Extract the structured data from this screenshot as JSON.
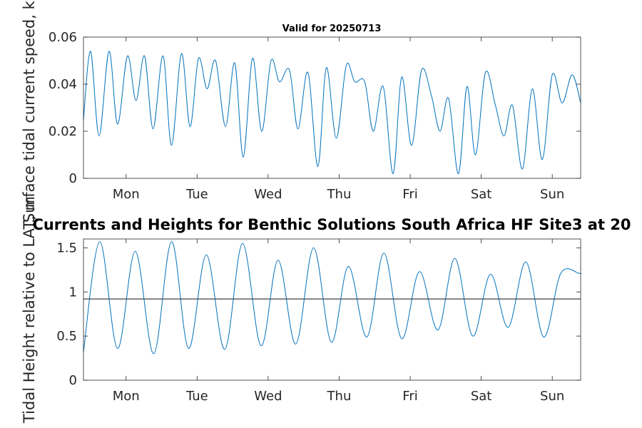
{
  "figure": {
    "main_title": "Currents and Heights for Benthic Solutions South Africa HF Site3 at 20"
  },
  "colors": {
    "line": "#0072BD",
    "axes": "#262626",
    "reference_line": "#404040"
  },
  "chart_data": [
    {
      "type": "line",
      "title": "Valid for 20250713",
      "ylabel": "Surface tidal current speed, kn",
      "xlabel": "",
      "categories": [
        "Mon",
        "Tue",
        "Wed",
        "Thu",
        "Fri",
        "Sat",
        "Sun"
      ],
      "x_range_days": [
        -0.6,
        6.4
      ],
      "ylim": [
        0,
        0.06
      ],
      "yticks": [
        0,
        0.02,
        0.04,
        0.06
      ],
      "ytick_labels": [
        "0",
        "0.02",
        "0.04",
        "0.06"
      ],
      "grid": false,
      "series": [
        {
          "x": [
            -0.6,
            -0.5,
            -0.38,
            -0.24,
            -0.12,
            0.02,
            0.14,
            0.26,
            0.38,
            0.52,
            0.64,
            0.78,
            0.9,
            1.02,
            1.14,
            1.26,
            1.4,
            1.53,
            1.65,
            1.78,
            1.91,
            2.04,
            2.16,
            2.3,
            2.42,
            2.56,
            2.7,
            2.82,
            2.96,
            3.1,
            3.22,
            3.36,
            3.48,
            3.62,
            3.76,
            3.88,
            4.02,
            4.16,
            4.3,
            4.42,
            4.54,
            4.68,
            4.8,
            4.92,
            5.06,
            5.2,
            5.32,
            5.44,
            5.58,
            5.72,
            5.86,
            6.0,
            6.14,
            6.28,
            6.4
          ],
          "y": [
            0.025,
            0.054,
            0.018,
            0.054,
            0.023,
            0.052,
            0.033,
            0.052,
            0.021,
            0.052,
            0.014,
            0.053,
            0.022,
            0.051,
            0.038,
            0.05,
            0.022,
            0.049,
            0.009,
            0.051,
            0.02,
            0.05,
            0.041,
            0.046,
            0.021,
            0.045,
            0.005,
            0.047,
            0.017,
            0.048,
            0.041,
            0.041,
            0.02,
            0.039,
            0.002,
            0.043,
            0.014,
            0.046,
            0.035,
            0.02,
            0.034,
            0.002,
            0.039,
            0.01,
            0.045,
            0.031,
            0.018,
            0.031,
            0.004,
            0.038,
            0.008,
            0.044,
            0.032,
            0.044,
            0.032
          ]
        }
      ]
    },
    {
      "type": "line",
      "title": "",
      "ylabel": "Tidal Height relative to LAT, m",
      "xlabel": "",
      "categories": [
        "Mon",
        "Tue",
        "Wed",
        "Thu",
        "Fri",
        "Sat",
        "Sun"
      ],
      "x_range_days": [
        -0.6,
        6.4
      ],
      "ylim": [
        0,
        1.6
      ],
      "yticks": [
        0,
        0.5,
        1,
        1.5
      ],
      "ytick_labels": [
        "0",
        "0.5",
        "1",
        "1.5"
      ],
      "grid": false,
      "reference_level": 0.92,
      "series": [
        {
          "x": [
            -0.6,
            -0.37,
            -0.12,
            0.13,
            0.39,
            0.64,
            0.88,
            1.13,
            1.39,
            1.64,
            1.9,
            2.14,
            2.39,
            2.64,
            2.89,
            3.13,
            3.39,
            3.63,
            3.88,
            4.13,
            4.39,
            4.63,
            4.88,
            5.13,
            5.38,
            5.63,
            5.88,
            6.12,
            6.38,
            6.4
          ],
          "y": [
            0.32,
            1.57,
            0.36,
            1.46,
            0.3,
            1.57,
            0.36,
            1.42,
            0.35,
            1.55,
            0.39,
            1.36,
            0.41,
            1.5,
            0.43,
            1.29,
            0.49,
            1.44,
            0.47,
            1.23,
            0.57,
            1.38,
            0.5,
            1.2,
            0.6,
            1.34,
            0.49,
            1.21,
            1.21,
            1.21
          ]
        }
      ]
    }
  ]
}
